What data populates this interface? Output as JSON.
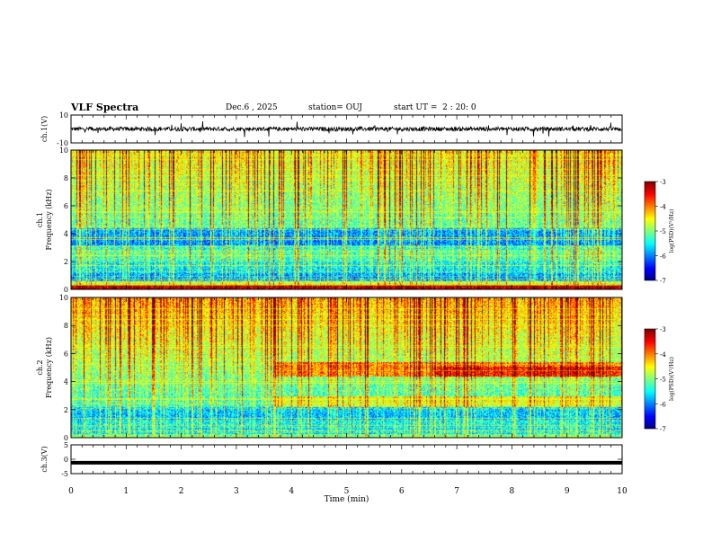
{
  "header": {
    "title": "VLF Spectra",
    "date": "Dec.6 , 2025",
    "station": "station= OUJ",
    "start": "start UT =  2 : 20: 0"
  },
  "chart_data": [
    {
      "type": "line",
      "panel": "ch1-waveform",
      "ylabel": "ch.1(V)",
      "ylim": [
        -10,
        10
      ],
      "yticks": [
        "10",
        "-10"
      ],
      "baseline": 0,
      "noise_amplitude": 1.5,
      "spike_amplitude": 6
    },
    {
      "type": "heatmap",
      "panel": "ch1-spectrogram",
      "ylabel": "ch.1\nFrequency (kHz)",
      "ylim": [
        0,
        10
      ],
      "yticks": [
        "0",
        "2",
        "4",
        "6",
        "8",
        "10"
      ],
      "colorbar": {
        "label": "log(PSD)(V²/Hz)",
        "ticks": [
          "-3",
          "-4",
          "-5",
          "-6",
          "-7"
        ],
        "range": [
          -7,
          -3
        ]
      }
    },
    {
      "type": "heatmap",
      "panel": "ch2-spectrogram",
      "ylabel": "ch.2\nFrequency (kHz)",
      "ylim": [
        0,
        10
      ],
      "yticks": [
        "0",
        "2",
        "4",
        "6",
        "8",
        "10"
      ],
      "colorbar": {
        "label": "log(PSD)(V²/Hz)",
        "ticks": [
          "-3",
          "-4",
          "-5",
          "-6",
          "-7"
        ],
        "range": [
          -7,
          -3
        ]
      }
    },
    {
      "type": "line",
      "panel": "ch3-waveform",
      "ylabel": "ch.3(V)",
      "ylim": [
        -5,
        5
      ],
      "yticks": [
        "5",
        "0",
        "-5"
      ],
      "baseline": -1.2
    }
  ],
  "xaxis": {
    "label": "Time (min)",
    "range": [
      0,
      10
    ],
    "ticks": [
      "0",
      "1",
      "2",
      "3",
      "4",
      "5",
      "6",
      "7",
      "8",
      "9",
      "10"
    ]
  },
  "colors": {
    "jet": [
      "#00007f",
      "#0000ff",
      "#007fff",
      "#00ffff",
      "#7fff7f",
      "#ffff00",
      "#ff7f00",
      "#ff0000",
      "#7f0000"
    ]
  }
}
